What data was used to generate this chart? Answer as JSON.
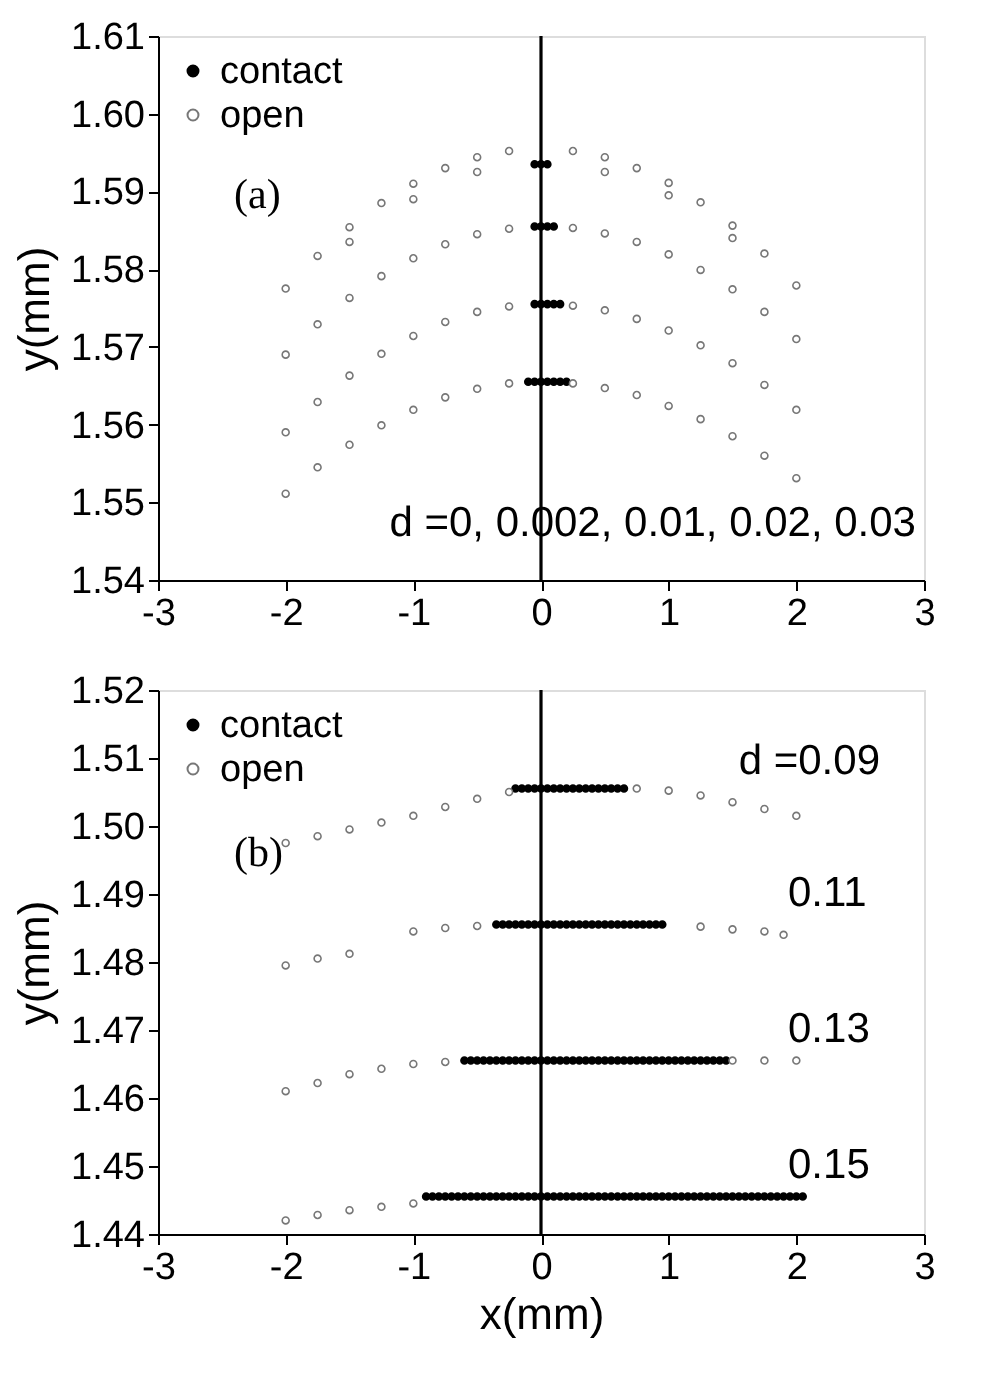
{
  "chart_data": [
    {
      "type": "scatter",
      "ylabel": "y(mm)",
      "xlim": [
        -3,
        3
      ],
      "xticks": [
        -3,
        -2,
        -1,
        0,
        1,
        2,
        3
      ],
      "ylim": [
        1.54,
        1.61
      ],
      "yticks": [
        1.54,
        1.55,
        1.56,
        1.57,
        1.58,
        1.59,
        {
          "value": 1.6,
          "label": "1.60"
        },
        1.61
      ],
      "legend": "top left",
      "grid": false,
      "marker": "circle",
      "ref_lines": [
        {
          "axis": "x",
          "value": 0,
          "color": "#000000",
          "line_style": "solid"
        }
      ],
      "annotations": [
        "(a)",
        "d =0, 0.002, 0.01, 0.02, 0.03"
      ],
      "series": [
        {
          "name": "contact",
          "color": "#000000",
          "x": [
            -0.05,
            0,
            0.05,
            -0.05,
            0,
            0.05,
            0.1,
            -0.05,
            0,
            0.05,
            0.1,
            0.15,
            -0.1,
            -0.05,
            0,
            0.05,
            0.1,
            0.15,
            0.2
          ],
          "values": [
            1.5935,
            1.5935,
            1.5935,
            1.5855,
            1.5855,
            1.5855,
            1.5855,
            1.5755,
            1.5755,
            1.5755,
            1.5755,
            1.5755,
            1.5655,
            1.5655,
            1.5655,
            1.5655,
            1.5655,
            1.5655,
            1.5655
          ]
        },
        {
          "name": "open",
          "color": "#777777",
          "x": [
            -2,
            -1.75,
            -1.5,
            -1.25,
            -1,
            -0.75,
            -0.5,
            -0.25,
            0.25,
            0.5,
            0.75,
            1,
            1.25,
            1.5,
            1.75,
            2,
            -1.5,
            -1,
            -0.5,
            0.5,
            1,
            1.5,
            -2,
            -1.75,
            -1.5,
            -1.25,
            -1,
            -0.75,
            -0.5,
            -0.25,
            0.25,
            0.5,
            0.75,
            1,
            1.25,
            1.5,
            1.75,
            2,
            -2,
            -1.75,
            -1.5,
            -1.25,
            -1,
            -0.75,
            -0.5,
            -0.25,
            0.25,
            0.5,
            0.75,
            1,
            1.25,
            1.5,
            1.75,
            2,
            -2,
            -1.75,
            -1.5,
            -1.25,
            -1,
            -0.75,
            -0.5,
            -0.25,
            0.25,
            0.5,
            0.75,
            1,
            1.25,
            1.5,
            1.75,
            2
          ],
          "values": [
            1.5775,
            1.5817,
            1.5854,
            1.5885,
            1.591,
            1.593,
            1.5944,
            1.5952,
            1.5952,
            1.5944,
            1.593,
            1.5911,
            1.5886,
            1.5856,
            1.582,
            1.5779,
            1.5835,
            1.589,
            1.5925,
            1.5925,
            1.5895,
            1.584,
            1.569,
            1.5729,
            1.5763,
            1.5791,
            1.5814,
            1.5832,
            1.5845,
            1.5852,
            1.5853,
            1.5846,
            1.5835,
            1.5819,
            1.5799,
            1.5774,
            1.5745,
            1.571,
            1.559,
            1.5629,
            1.5663,
            1.5691,
            1.5714,
            1.5732,
            1.5745,
            1.5752,
            1.5753,
            1.5747,
            1.5736,
            1.5721,
            1.5702,
            1.5679,
            1.5651,
            1.5619,
            1.5511,
            1.5545,
            1.5574,
            1.5599,
            1.5619,
            1.5635,
            1.5646,
            1.5653,
            1.5653,
            1.5647,
            1.5638,
            1.5624,
            1.5607,
            1.5585,
            1.556,
            1.5531
          ]
        }
      ]
    },
    {
      "type": "scatter",
      "xlabel": "x(mm)",
      "ylabel": "y(mm)",
      "xlim": [
        -3,
        3
      ],
      "xticks": [
        -3,
        -2,
        -1,
        0,
        1,
        2,
        3
      ],
      "ylim": [
        1.44,
        1.52
      ],
      "yticks": [
        1.44,
        1.45,
        1.46,
        1.47,
        1.48,
        1.49,
        {
          "value": 1.5,
          "label": "1.50"
        },
        1.51,
        1.52
      ],
      "legend": "top left",
      "grid": false,
      "marker": "circle",
      "ref_lines": [
        {
          "axis": "x",
          "value": 0,
          "color": "#000000",
          "line_style": "solid"
        }
      ],
      "annotations": [
        "(b)",
        "d =0.09",
        "0.11",
        "0.13",
        "0.15"
      ],
      "series": [
        {
          "name": "contact",
          "color": "#000000",
          "x": [
            -0.2,
            -0.15,
            -0.1,
            -0.05,
            0,
            0.05,
            0.1,
            0.15,
            0.2,
            0.25,
            0.3,
            0.35,
            0.4,
            0.45,
            0.5,
            0.55,
            0.6,
            0.65,
            -0.35,
            -0.3,
            -0.25,
            -0.2,
            -0.15,
            -0.1,
            -0.05,
            0,
            0.05,
            0.1,
            0.15,
            0.2,
            0.25,
            0.3,
            0.35,
            0.4,
            0.45,
            0.5,
            0.55,
            0.6,
            0.65,
            0.7,
            0.75,
            0.8,
            0.85,
            0.9,
            0.95,
            -0.6,
            -0.55,
            -0.5,
            -0.45,
            -0.4,
            -0.35,
            -0.3,
            -0.25,
            -0.2,
            -0.15,
            -0.1,
            -0.05,
            0,
            0.05,
            0.1,
            0.15,
            0.2,
            0.25,
            0.3,
            0.35,
            0.4,
            0.45,
            0.5,
            0.55,
            0.6,
            0.65,
            0.7,
            0.75,
            0.8,
            0.85,
            0.9,
            0.95,
            1,
            1.05,
            1.1,
            1.15,
            1.2,
            1.25,
            1.3,
            1.35,
            1.4,
            1.45,
            -0.9,
            -0.85,
            -0.8,
            -0.75,
            -0.7,
            -0.65,
            -0.6,
            -0.55,
            -0.5,
            -0.45,
            -0.4,
            -0.35,
            -0.3,
            -0.25,
            -0.2,
            -0.15,
            -0.1,
            -0.05,
            0,
            0.05,
            0.1,
            0.15,
            0.2,
            0.25,
            0.3,
            0.35,
            0.4,
            0.45,
            0.5,
            0.55,
            0.6,
            0.65,
            0.7,
            0.75,
            0.8,
            0.85,
            0.9,
            0.95,
            1,
            1.05,
            1.1,
            1.15,
            1.2,
            1.25,
            1.3,
            1.35,
            1.4,
            1.45,
            1.5,
            1.55,
            1.6,
            1.65,
            1.7,
            1.75,
            1.8,
            1.85,
            1.9,
            1.95,
            2,
            2.05
          ],
          "values": [
            1.5055,
            1.5055,
            1.5055,
            1.5055,
            1.5055,
            1.5055,
            1.5055,
            1.5055,
            1.5055,
            1.5055,
            1.5055,
            1.5055,
            1.5055,
            1.5055,
            1.5055,
            1.5055,
            1.5055,
            1.5055,
            1.4855,
            1.4855,
            1.4855,
            1.4855,
            1.4855,
            1.4855,
            1.4855,
            1.4855,
            1.4855,
            1.4855,
            1.4855,
            1.4855,
            1.4855,
            1.4855,
            1.4855,
            1.4855,
            1.4855,
            1.4855,
            1.4855,
            1.4855,
            1.4855,
            1.4855,
            1.4855,
            1.4855,
            1.4855,
            1.4855,
            1.4855,
            1.4655,
            1.4655,
            1.4655,
            1.4655,
            1.4655,
            1.4655,
            1.4655,
            1.4655,
            1.4655,
            1.4655,
            1.4655,
            1.4655,
            1.4655,
            1.4655,
            1.4655,
            1.4655,
            1.4655,
            1.4655,
            1.4655,
            1.4655,
            1.4655,
            1.4655,
            1.4655,
            1.4655,
            1.4655,
            1.4655,
            1.4655,
            1.4655,
            1.4655,
            1.4655,
            1.4655,
            1.4655,
            1.4655,
            1.4655,
            1.4655,
            1.4655,
            1.4655,
            1.4655,
            1.4655,
            1.4655,
            1.4655,
            1.4655,
            1.4455,
            1.4455,
            1.4455,
            1.4455,
            1.4455,
            1.4455,
            1.4455,
            1.4455,
            1.4455,
            1.4455,
            1.4455,
            1.4455,
            1.4455,
            1.4455,
            1.4455,
            1.4455,
            1.4455,
            1.4455,
            1.4455,
            1.4455,
            1.4455,
            1.4455,
            1.4455,
            1.4455,
            1.4455,
            1.4455,
            1.4455,
            1.4455,
            1.4455,
            1.4455,
            1.4455,
            1.4455,
            1.4455,
            1.4455,
            1.4455,
            1.4455,
            1.4455,
            1.4455,
            1.4455,
            1.4455,
            1.4455,
            1.4455,
            1.4455,
            1.4455,
            1.4455,
            1.4455,
            1.4455,
            1.4455,
            1.4455,
            1.4455,
            1.4455,
            1.4455,
            1.4455,
            1.4455,
            1.4455,
            1.4455,
            1.4455,
            1.4455,
            1.4455,
            1.4455
          ]
        },
        {
          "name": "open",
          "color": "#777777",
          "x": [
            -2,
            -1.75,
            -1.5,
            -1.25,
            -1,
            -0.75,
            -0.5,
            -0.25,
            0.75,
            1,
            1.25,
            1.5,
            1.75,
            2,
            -2,
            -1.75,
            -1.5,
            -1,
            -0.75,
            -0.5,
            1.25,
            1.5,
            1.75,
            1.9,
            -2,
            -1.75,
            -1.5,
            -1.25,
            -1,
            -0.75,
            1.5,
            1.75,
            2,
            -2,
            -1.75,
            -1.5,
            -1.25,
            -1
          ],
          "values": [
            1.4975,
            1.4985,
            1.4995,
            1.5005,
            1.5015,
            1.5028,
            1.504,
            1.505,
            1.5055,
            1.5052,
            1.5045,
            1.5035,
            1.5025,
            1.5015,
            1.4795,
            1.4805,
            1.4812,
            1.4845,
            1.485,
            1.4853,
            1.4852,
            1.4848,
            1.4845,
            1.484,
            1.461,
            1.4622,
            1.4635,
            1.4643,
            1.465,
            1.4653,
            1.4655,
            1.4655,
            1.4655,
            1.442,
            1.4428,
            1.4435,
            1.444,
            1.4445
          ]
        }
      ]
    }
  ]
}
